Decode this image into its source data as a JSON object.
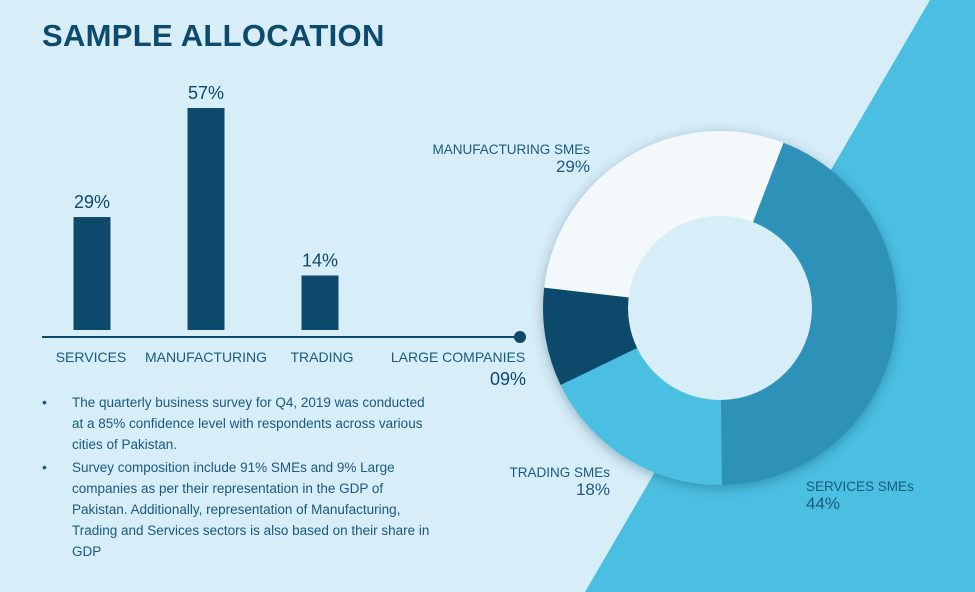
{
  "title": "SAMPLE ALLOCATION",
  "bullets": [
    "The quarterly business survey for Q4, 2019 was conducted at a 85% confidence level with respondents across various cities of Pakistan.",
    "Survey composition include 91% SMEs and 9% Large companies as per their representation in the GDP of Pakistan. Additionally, representation of Manufacturing, Trading and Services sectors is also based on their share in GDP"
  ],
  "large_companies": {
    "label": "LARGE COMPANIES",
    "value": "09%"
  },
  "colors": {
    "background": "#d7edf8",
    "accent_band": "#4bbfe2",
    "bar": "#0d4a6b",
    "text": "#0d4a6b"
  },
  "chart_data": [
    {
      "type": "bar",
      "categories": [
        "SERVICES",
        "MANUFACTURING",
        "TRADING"
      ],
      "values": [
        29,
        57,
        14
      ],
      "value_labels": [
        "29%",
        "57%",
        "14%"
      ],
      "unit": "%",
      "ylim": [
        0,
        57
      ],
      "grid": false
    },
    {
      "type": "pie",
      "donut": true,
      "categories": [
        "SERVICES SMEs",
        "TRADING SMEs",
        "LARGE COMPANIES",
        "MANUFACTURING SMEs"
      ],
      "values": [
        44,
        18,
        9,
        29
      ],
      "value_labels": [
        "44%",
        "18%",
        "09%",
        "29%"
      ],
      "colors": [
        "#2f91b7",
        "#4bbfe2",
        "#0d4a6b",
        "#f3f8fb"
      ],
      "start_angle_deg": 21
    }
  ]
}
